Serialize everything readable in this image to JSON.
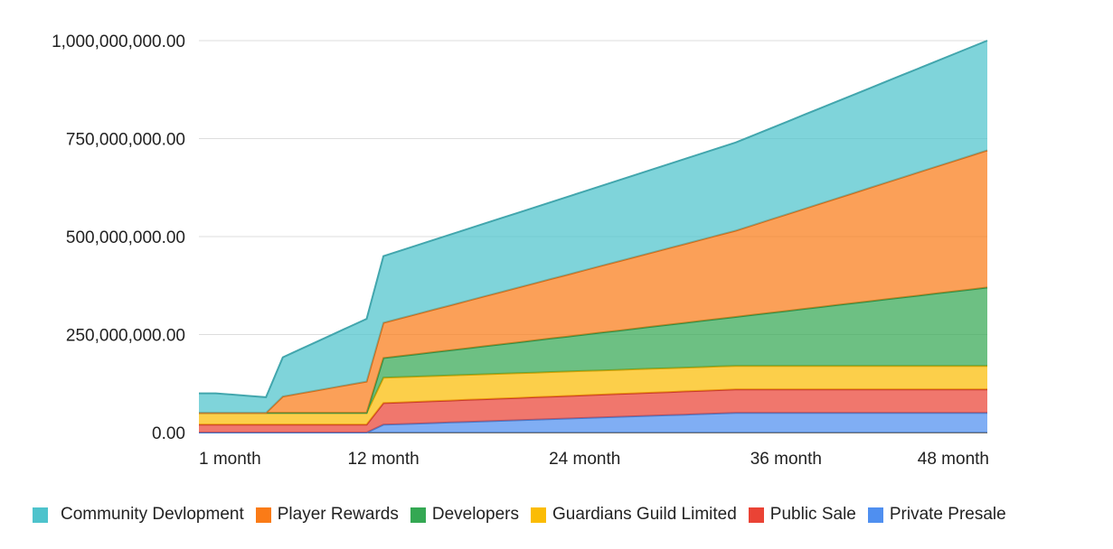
{
  "chart_data": {
    "type": "area",
    "stacked": true,
    "x": [
      1,
      2,
      3,
      4,
      5,
      6,
      7,
      8,
      9,
      10,
      11,
      12,
      13,
      14,
      15,
      16,
      17,
      18,
      19,
      20,
      21,
      22,
      23,
      24,
      25,
      26,
      27,
      28,
      29,
      30,
      31,
      32,
      33,
      34,
      35,
      36,
      37,
      38,
      39,
      40,
      41,
      42,
      43,
      44,
      45,
      46,
      47,
      48
    ],
    "x_ticks": [
      {
        "value": 1,
        "label": "1 month"
      },
      {
        "value": 12,
        "label": "12 month"
      },
      {
        "value": 24,
        "label": "24 month"
      },
      {
        "value": 36,
        "label": "36 month"
      },
      {
        "value": 48,
        "label": "48 month"
      }
    ],
    "y_ticks": [
      {
        "value": 0,
        "label": "0.00"
      },
      {
        "value": 250000000,
        "label": "250,000,000.00"
      },
      {
        "value": 500000000,
        "label": "500,000,000.00"
      },
      {
        "value": 750000000,
        "label": "750,000,000.00"
      },
      {
        "value": 1000000000,
        "label": "1,000,000,000.00"
      }
    ],
    "ylim": [
      0,
      1000000000
    ],
    "grid": true,
    "legend_position": "bottom",
    "series": [
      {
        "name": "Private Presale",
        "color": "#4f8ff0",
        "anchors": [
          [
            1,
            0
          ],
          [
            11,
            0
          ],
          [
            12,
            20000000
          ],
          [
            33,
            50000000
          ],
          [
            48,
            50000000
          ]
        ]
      },
      {
        "name": "Public Sale",
        "color": "#ea4335",
        "anchors": [
          [
            1,
            20000000
          ],
          [
            11,
            20000000
          ],
          [
            12,
            55000000
          ],
          [
            33,
            60000000
          ],
          [
            48,
            60000000
          ]
        ]
      },
      {
        "name": "Guardians Guild Limited",
        "color": "#fbbc04",
        "anchors": [
          [
            1,
            30000000
          ],
          [
            11,
            30000000
          ],
          [
            12,
            65000000
          ],
          [
            33,
            60000000
          ],
          [
            48,
            60000000
          ]
        ]
      },
      {
        "name": "Developers",
        "color": "#34a853",
        "anchors": [
          [
            1,
            0
          ],
          [
            11,
            0
          ],
          [
            12,
            50000000
          ],
          [
            33,
            125000000
          ],
          [
            48,
            200000000
          ]
        ]
      },
      {
        "name": "Player Rewards",
        "color": "#fa7b17",
        "anchors": [
          [
            1,
            0
          ],
          [
            5,
            0
          ],
          [
            6,
            42000000
          ],
          [
            11,
            80000000
          ],
          [
            12,
            90000000
          ],
          [
            33,
            220000000
          ],
          [
            48,
            350000000
          ]
        ]
      },
      {
        "name": "Community Devlopment",
        "color": "#4ec3cc",
        "anchors": [
          [
            1,
            50000000
          ],
          [
            2,
            50000000
          ],
          [
            5,
            40000000
          ],
          [
            6,
            100000000
          ],
          [
            11,
            160000000
          ],
          [
            12,
            170000000
          ],
          [
            33,
            225000000
          ],
          [
            48,
            280000000
          ]
        ]
      }
    ]
  },
  "legend": [
    {
      "label": "Community Devlopment",
      "color": "#4ec3cc"
    },
    {
      "label": "Player Rewards",
      "color": "#fa7b17"
    },
    {
      "label": "Developers",
      "color": "#34a853"
    },
    {
      "label": "Guardians Guild Limited",
      "color": "#fbbc04"
    },
    {
      "label": "Public Sale",
      "color": "#ea4335"
    },
    {
      "label": "Private Presale",
      "color": "#4f8ff0"
    }
  ]
}
